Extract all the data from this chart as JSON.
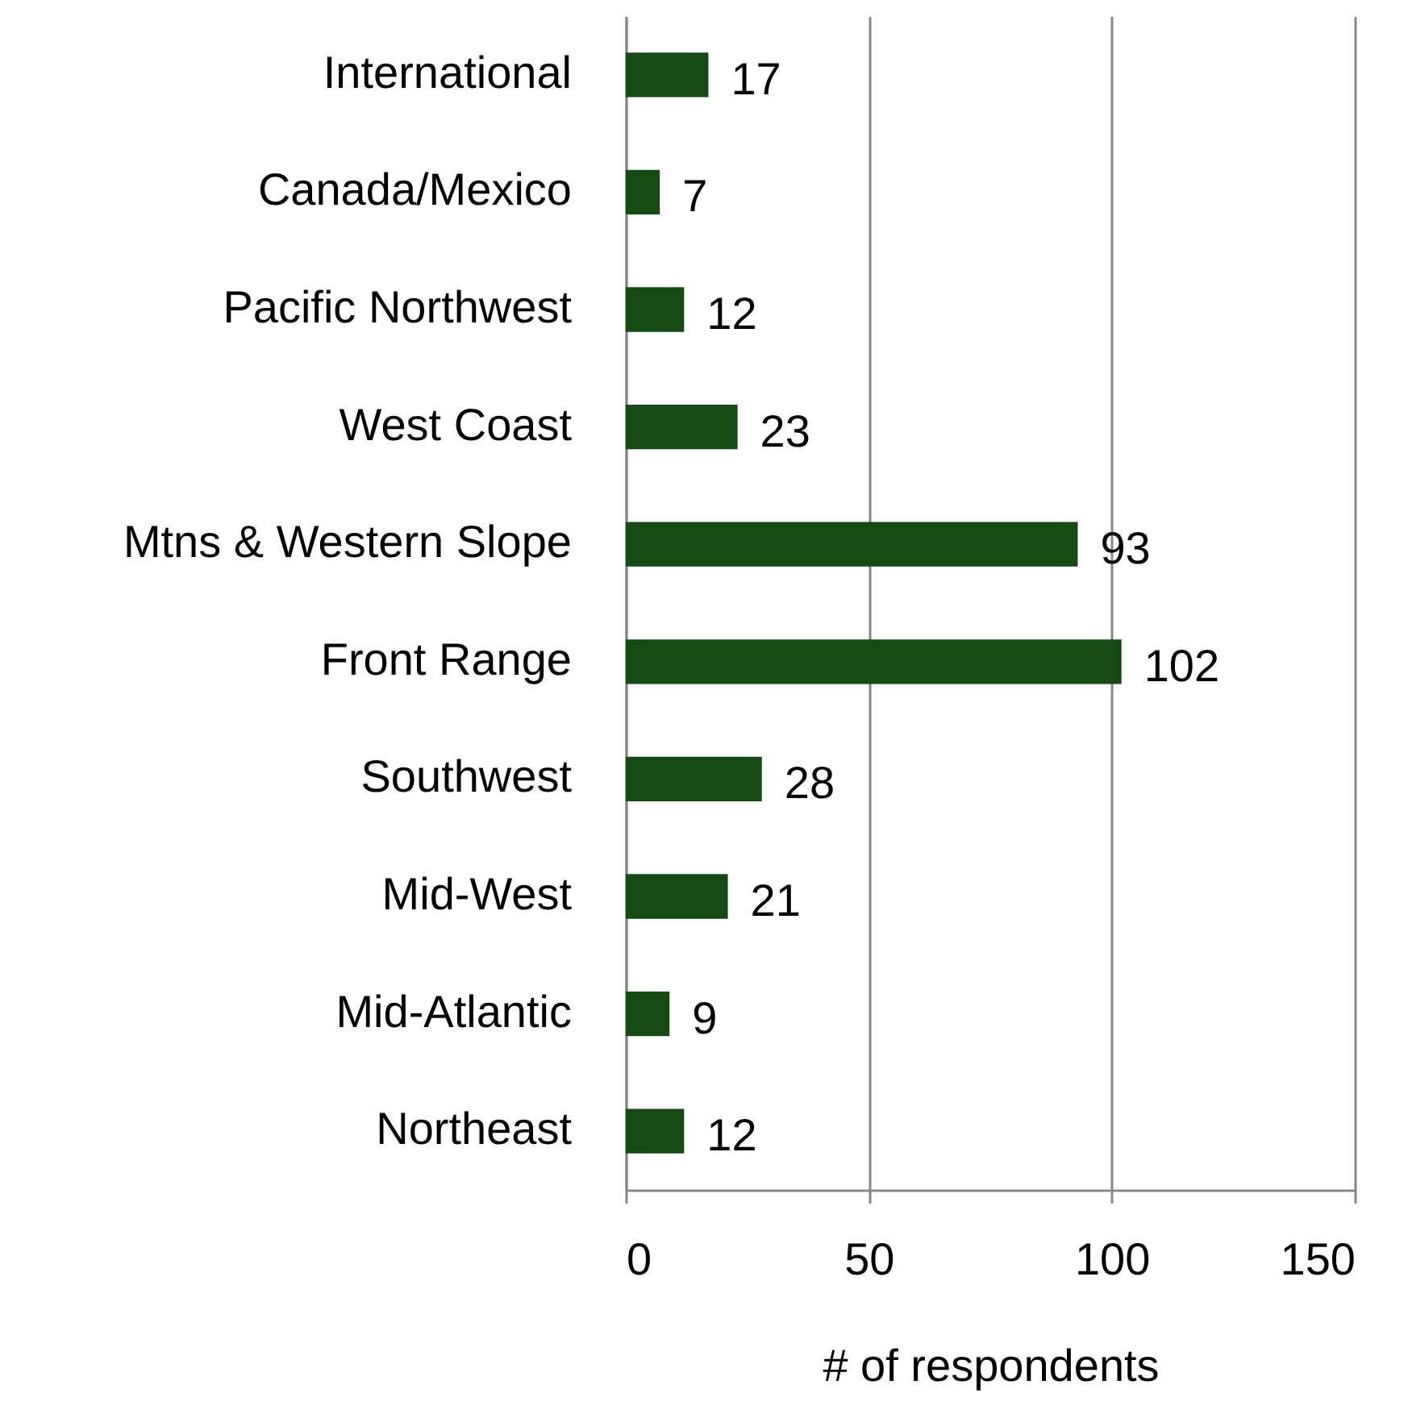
{
  "chart_data": {
    "type": "bar",
    "orientation": "horizontal",
    "xlabel": "# of respondents",
    "categories": [
      "International",
      "Canada/Mexico",
      "Pacific Northwest",
      "West Coast",
      "Mtns & Western Slope",
      "Front Range",
      "Southwest",
      "Mid-West",
      "Mid-Atlantic",
      "Northeast"
    ],
    "values": [
      17,
      7,
      12,
      23,
      93,
      102,
      28,
      21,
      9,
      12
    ],
    "color": "#154a14",
    "xlim": [
      0,
      150
    ],
    "xticks": [
      0,
      50,
      100,
      150
    ],
    "grid": "x",
    "data_labels": true
  }
}
